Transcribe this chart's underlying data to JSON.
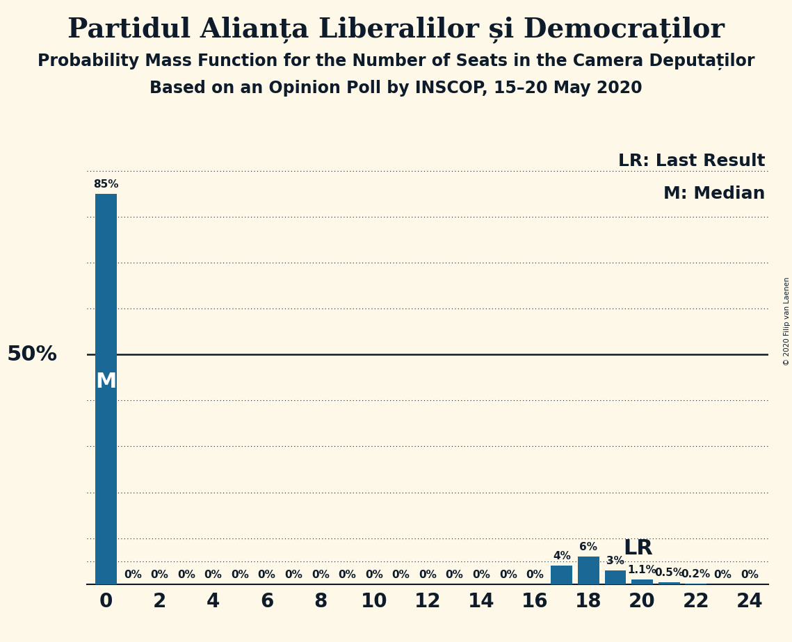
{
  "title": "Partidul Alianța Liberalilor și Democraților",
  "subtitle1": "Probability Mass Function for the Number of Seats in the Camera Deputaților",
  "subtitle2": "Based on an Opinion Poll by INSCOP, 15–20 May 2020",
  "copyright": "© 2020 Filip van Laenen",
  "x_values": [
    0,
    1,
    2,
    3,
    4,
    5,
    6,
    7,
    8,
    9,
    10,
    11,
    12,
    13,
    14,
    15,
    16,
    17,
    18,
    19,
    20,
    21,
    22,
    23,
    24
  ],
  "y_values": [
    85,
    0,
    0,
    0,
    0,
    0,
    0,
    0,
    0,
    0,
    0,
    0,
    0,
    0,
    0,
    0,
    0,
    4,
    6,
    3,
    1.1,
    0.5,
    0.2,
    0,
    0
  ],
  "bar_color": "#1a6896",
  "background_color": "#fdf8e8",
  "text_color": "#0d1b2a",
  "median_x": 0,
  "lr_x": 19,
  "ylabel_text": "50%",
  "y_50_line": 50,
  "dotted_lines": [
    10,
    20,
    30,
    40,
    60,
    70,
    80,
    90
  ],
  "xlim": [
    -0.7,
    24.7
  ],
  "ylim": [
    0,
    95
  ],
  "xticks": [
    0,
    2,
    4,
    6,
    8,
    10,
    12,
    14,
    16,
    18,
    20,
    22,
    24
  ],
  "title_fontsize": 28,
  "subtitle_fontsize": 17,
  "bar_label_fontsize": 11,
  "axis_label_fontsize": 22,
  "legend_fontsize": 18,
  "marker_fontsize": 22,
  "lr_dotted_y": 5
}
